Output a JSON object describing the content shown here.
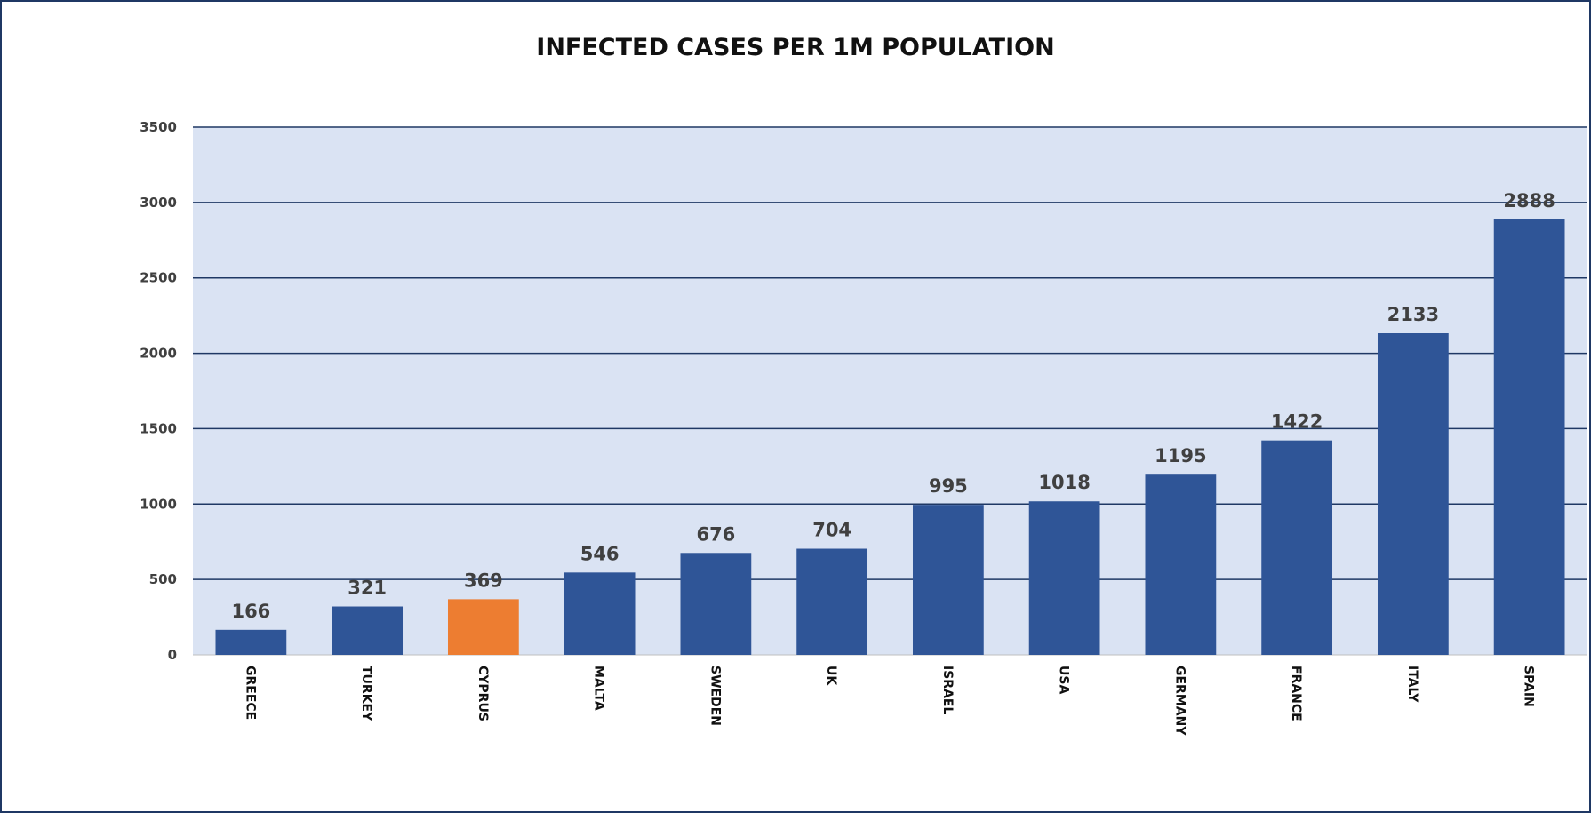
{
  "chart_data": {
    "type": "bar",
    "title": "INFECTED CASES PER 1M POPULATION",
    "xlabel": "",
    "ylabel": "",
    "categories": [
      "GREECE",
      "TURKEY",
      "CYPRUS",
      "MALTA",
      "SWEDEN",
      "UK",
      "ISRAEL",
      "USA",
      "GERMANY",
      "FRANCE",
      "ITALY",
      "SPAIN"
    ],
    "values": [
      166,
      321,
      369,
      546,
      676,
      704,
      995,
      1018,
      1195,
      1422,
      2133,
      2888
    ],
    "ylim": [
      0,
      3500
    ],
    "yticks": [
      0,
      500,
      1000,
      1500,
      2000,
      2500,
      3000,
      3500
    ],
    "grid": true,
    "legend": "none",
    "highlight_category": "CYPRUS",
    "colors": {
      "bar": "#2f5597",
      "highlight": "#ed7d31",
      "plot_background": "#dae3f3",
      "gridline": "#1f3864",
      "frame": "#1f3864"
    }
  }
}
